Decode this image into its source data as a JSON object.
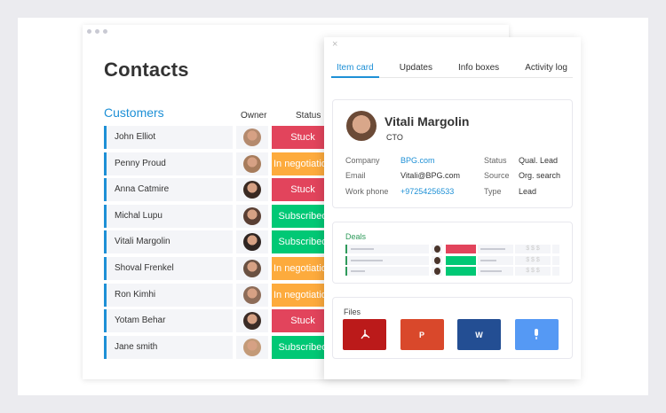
{
  "board": {
    "title": "Contacts",
    "group": "Customers",
    "columns": {
      "owner": "Owner",
      "status": "Status"
    },
    "rows": [
      {
        "name": "John Elliot",
        "status": "Stuck",
        "color": "#e2445c",
        "avatar": "#b48a6e"
      },
      {
        "name": "Penny Proud",
        "status": "In negotiation",
        "color": "#fdab3d",
        "avatar": "#a77c5c"
      },
      {
        "name": "Anna Catmire",
        "status": "Stuck",
        "color": "#e2445c",
        "avatar": "#3a2a22"
      },
      {
        "name": "Michal Lupu",
        "status": "Subscribed",
        "color": "#00c875",
        "avatar": "#5a3f33"
      },
      {
        "name": "Vitali Margolin",
        "status": "Subscribed",
        "color": "#00c875",
        "avatar": "#2f2522"
      },
      {
        "name": "Shoval Frenkel",
        "status": "In negotiation",
        "color": "#fdab3d",
        "avatar": "#6a5142"
      },
      {
        "name": "Ron Kimhi",
        "status": "In negotiation",
        "color": "#fdab3d",
        "avatar": "#8d6c58"
      },
      {
        "name": "Yotam Behar",
        "status": "Stuck",
        "color": "#e2445c",
        "avatar": "#3b2c26"
      },
      {
        "name": "Jane smith",
        "status": "Subscribed",
        "color": "#00c875",
        "avatar": "#c39a78"
      }
    ]
  },
  "panel": {
    "close": "×",
    "tabs": [
      "Item card",
      "Updates",
      "Info boxes",
      "Activity log"
    ],
    "person": {
      "name": "Vitali Margolin",
      "role": "CTO",
      "company_label": "Company",
      "company": "BPG.com",
      "email_label": "Email",
      "email": "Vitali@BPG.com",
      "phone_label": "Work phone",
      "phone": "+97254256533",
      "status_label": "Status",
      "status": "Qual. Lead",
      "source_label": "Source",
      "source": "Org. search",
      "type_label": "Type",
      "type": "Lead"
    },
    "deals": {
      "title": "Deals",
      "price": "$ $ $",
      "rows": [
        {
          "color": "#e2445c"
        },
        {
          "color": "#00c875"
        },
        {
          "color": "#00c875"
        }
      ]
    },
    "files": {
      "title": "Files",
      "items": [
        {
          "icon": "pdf-icon",
          "label": "",
          "color": "#bb1a1a"
        },
        {
          "icon": "powerpoint-icon",
          "label": "P",
          "color": "#d9482b"
        },
        {
          "icon": "word-icon",
          "label": "W",
          "color": "#234e93"
        },
        {
          "icon": "microphone-icon",
          "label": "",
          "color": "#5599f4"
        }
      ]
    }
  }
}
